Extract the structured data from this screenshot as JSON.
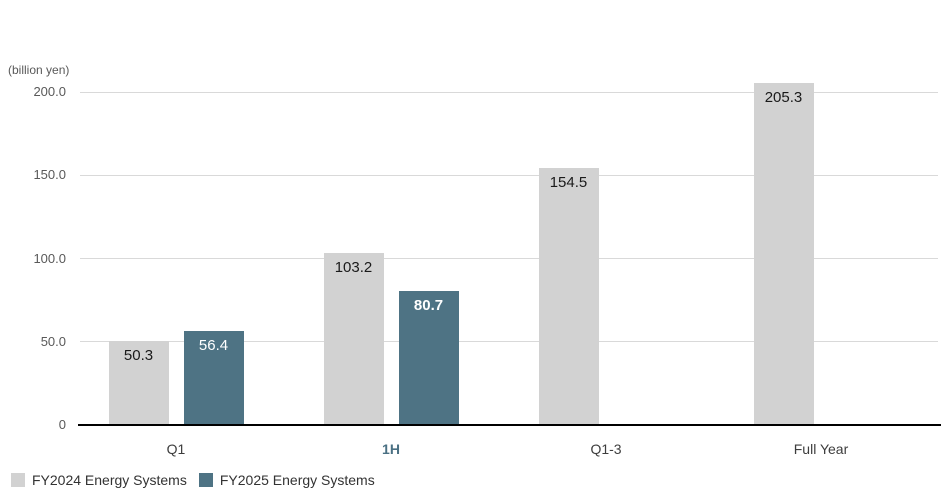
{
  "chart_data": {
    "type": "bar",
    "title": "",
    "unit_label": "(billion yen)",
    "xlabel": "",
    "ylabel": "billion yen",
    "ylim": [
      0,
      215
    ],
    "grid": true,
    "legend_position": "bottom-left",
    "categories": [
      {
        "label": "Q1",
        "emphasis": false
      },
      {
        "label": "1H",
        "emphasis": true
      },
      {
        "label": "Q1-3",
        "emphasis": false
      },
      {
        "label": "Full Year",
        "emphasis": false
      }
    ],
    "yticks": [
      {
        "value": 0,
        "label": "0"
      },
      {
        "value": 50,
        "label": "50.0"
      },
      {
        "value": 100,
        "label": "100.0"
      },
      {
        "value": 150,
        "label": "150.0"
      },
      {
        "value": 200,
        "label": "200.0"
      }
    ],
    "series": [
      {
        "name": "FY2024 Energy Systems",
        "color": "#d2d2d2",
        "label_color": "#1a1a1a",
        "values": [
          50.3,
          103.2,
          154.5,
          205.3
        ],
        "value_labels": [
          "50.3",
          "103.2",
          "154.5",
          "205.3"
        ],
        "emphasis_index": -1
      },
      {
        "name": "FY2025 Energy Systems",
        "color": "#4e7384",
        "label_color": "#ffffff",
        "values": [
          56.4,
          80.7,
          null,
          null
        ],
        "value_labels": [
          "56.4",
          "80.7",
          null,
          null
        ],
        "emphasis_index": 1
      }
    ]
  },
  "colors": {
    "fy2024_bar": "#d2d2d2",
    "fy2025_bar": "#4e7384",
    "gridline": "#d9d9d9",
    "axis_line": "#000000",
    "tick_text": "#595959",
    "xlabel_text": "#3d3d3d",
    "emphasis_text": "#4a7083",
    "value_text_dark": "#1a1a1a",
    "value_text_light": "#ffffff",
    "legend_text": "#333333"
  }
}
